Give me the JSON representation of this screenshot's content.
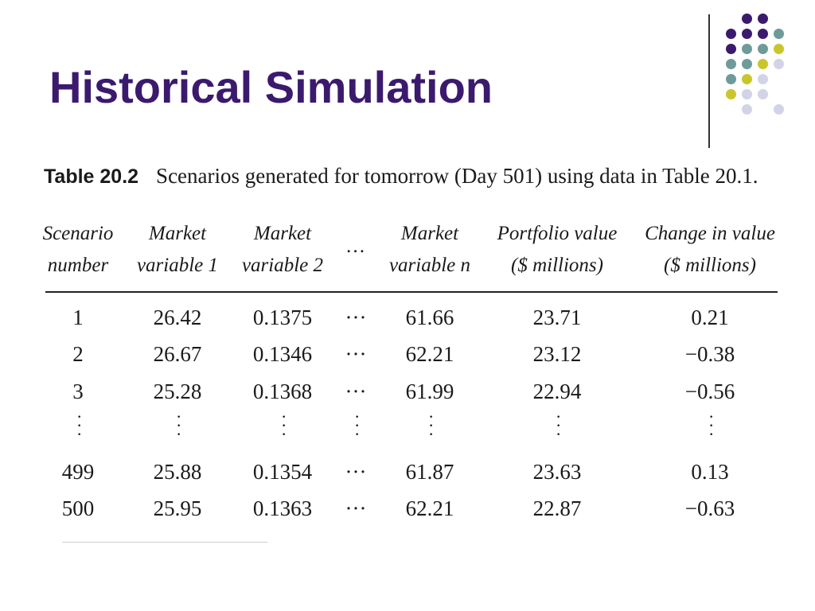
{
  "slide": {
    "title": "Historical Simulation"
  },
  "decoration": {
    "colors": {
      "purple": "#3b1a6e",
      "teal": "#6f9a9a",
      "yellow": "#c9c62b",
      "lavender": "#d3d3e8"
    },
    "dot_rows": [
      [
        "",
        "purple",
        "purple",
        ""
      ],
      [
        "purple",
        "purple",
        "purple",
        "teal"
      ],
      [
        "purple",
        "teal",
        "teal",
        "yellow"
      ],
      [
        "teal",
        "teal",
        "yellow",
        "lavender"
      ],
      [
        "teal",
        "yellow",
        "lavender",
        ""
      ],
      [
        "yellow",
        "lavender",
        "lavender",
        ""
      ],
      [
        "",
        "lavender",
        "",
        "lavender"
      ]
    ]
  },
  "table": {
    "label": "Table 20.2",
    "caption": "Scenarios generated for tomorrow (Day 501) using data in Table 20.1.",
    "headers": [
      [
        "Scenario",
        "number"
      ],
      [
        "Market",
        "variable 1"
      ],
      [
        "Market",
        "variable 2"
      ],
      [
        "…",
        ""
      ],
      [
        "Market",
        "variable n"
      ],
      [
        "Portfolio value",
        "($ millions)"
      ],
      [
        "Change in value",
        "($ millions)"
      ]
    ],
    "rows": [
      [
        "1",
        "26.42",
        "0.1375",
        "···",
        "61.66",
        "23.71",
        "0.21"
      ],
      [
        "2",
        "26.67",
        "0.1346",
        "···",
        "62.21",
        "23.12",
        "−0.38"
      ],
      [
        "3",
        "25.28",
        "0.1368",
        "···",
        "61.99",
        "22.94",
        "−0.56"
      ],
      [
        "499",
        "25.88",
        "0.1354",
        "···",
        "61.87",
        "23.63",
        "0.13"
      ],
      [
        "500",
        "25.95",
        "0.1363",
        "···",
        "62.21",
        "22.87",
        "−0.63"
      ]
    ],
    "ellipsis_glyph": "·\n·\n·"
  }
}
